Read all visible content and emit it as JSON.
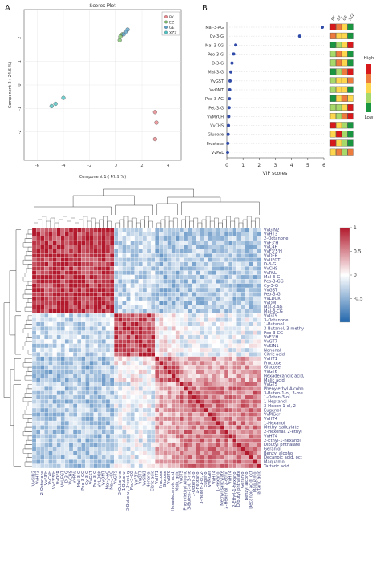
{
  "chart_data": [
    {
      "type": "scatter",
      "panel_label": "A",
      "title": "Scores Plot",
      "xlabel": "Component 1 ( 47.9 %)",
      "ylabel": "Component 2 ( 24.6 %)",
      "xlim": [
        -7,
        5
      ],
      "ylim": [
        -3.2,
        3.2
      ],
      "xticks": [
        -6,
        -4,
        -2,
        0,
        2,
        4
      ],
      "yticks": [
        -2,
        -1,
        0,
        1,
        2
      ],
      "legend": "top-right",
      "series": [
        {
          "name": "BY",
          "color": "#e8848a",
          "points": [
            [
              3.0,
              -1.15
            ],
            [
              3.1,
              -1.6
            ],
            [
              3.0,
              -2.3
            ]
          ]
        },
        {
          "name": "EZ",
          "color": "#7bbf6a",
          "points": [
            [
              0.5,
              2.15
            ],
            [
              0.3,
              1.9
            ],
            [
              0.35,
              2.05
            ]
          ]
        },
        {
          "name": "GE",
          "color": "#5aa0c8",
          "points": [
            [
              0.9,
              2.35
            ],
            [
              0.6,
              2.15
            ],
            [
              0.8,
              2.25
            ]
          ]
        },
        {
          "name": "XZZ",
          "color": "#4fc2c2",
          "points": [
            [
              -4.0,
              -0.55
            ],
            [
              -4.6,
              -0.8
            ],
            [
              -4.9,
              -0.9
            ]
          ]
        }
      ]
    },
    {
      "type": "scatter",
      "panel_label": "B",
      "xlabel": "VIP scores",
      "xlim": [
        0,
        6
      ],
      "xticks": [
        0,
        1,
        2,
        3,
        4,
        5,
        6
      ],
      "color": "#2f4aa8",
      "features": [
        "Mal-3-AG",
        "Cy-3-G",
        "Mal-3-CG",
        "Peo-3-G",
        "D-3-G",
        "Mal-3-G",
        "VvGST",
        "VvOMT",
        "Peo-3-AG",
        "Pet-3-G",
        "VvMYCH",
        "VvCHS",
        "Glucose",
        "Fructose",
        "VvPAL"
      ],
      "values": [
        5.9,
        4.5,
        0.55,
        0.42,
        0.32,
        0.25,
        0.2,
        0.18,
        0.16,
        0.14,
        0.12,
        0.1,
        0.08,
        0.06,
        0.05
      ],
      "group_labels": [
        "BY",
        "EZ",
        "GE",
        "XZZ"
      ],
      "scale_labels": [
        "High",
        "Low"
      ],
      "scale_colors": [
        "#d7191c",
        "#ec7b3d",
        "#fdd64d",
        "#a6d96a",
        "#1a9641"
      ],
      "group_levels": [
        [
          0.9,
          0.7,
          0.4,
          0.1
        ],
        [
          0.85,
          0.6,
          0.5,
          0.1
        ],
        [
          0.1,
          0.2,
          0.6,
          0.9
        ],
        [
          0.2,
          0.7,
          0.6,
          0.1
        ],
        [
          0.3,
          0.8,
          0.5,
          0.1
        ],
        [
          0.1,
          0.3,
          0.7,
          0.9
        ],
        [
          0.2,
          0.4,
          0.6,
          0.8
        ],
        [
          0.3,
          0.6,
          0.5,
          0.1
        ],
        [
          0.1,
          0.4,
          0.8,
          0.6
        ],
        [
          0.2,
          0.3,
          0.6,
          0.9
        ],
        [
          0.5,
          0.2,
          0.7,
          0.9
        ],
        [
          0.9,
          0.6,
          0.3,
          0.1
        ],
        [
          0.5,
          0.9,
          0.3,
          0.1
        ],
        [
          0.9,
          0.5,
          0.3,
          0.1
        ],
        [
          0.4,
          0.7,
          0.2,
          0.8
        ]
      ]
    },
    {
      "type": "heatmap",
      "colorbar_ticks": [
        "1",
        "0.5",
        "0",
        "-0.5"
      ],
      "colorbar_range": [
        -1,
        1
      ],
      "color_low": "#2166ac",
      "color_mid": "#ffffff",
      "color_high": "#b2182b",
      "row_labels": [
        "VvGIN2",
        "VvHT3",
        "2-Octanone",
        "VvF3'H",
        "VvC4H",
        "VvF3'5'H",
        "VvDFR",
        "VvUFGT",
        "D-3-G",
        "VvCHS",
        "VvPAL",
        "Mal-3-G",
        "Peo-3-GG",
        "Cy-3-G",
        "VvGST",
        "Peo-3-G",
        "VvLDOX",
        "VvOMT",
        "Mal-3-AG",
        "Mal-3-CG",
        "VvGT9",
        "3-Octanone",
        "1-Butanol",
        "3-Butanol, 3-methy",
        "Peo-3-CG",
        "VvF3'H",
        "VvGT7",
        "VvSIN1",
        "Nonanal",
        "Citric acid",
        "VvHT1",
        "Fructose",
        "Glucose",
        "VvGT6",
        "Hexadecanoic acid,",
        "Malic acid",
        "VvGT5",
        "Phenylethyl Alcoho",
        "3-Buten-1-ol, 3-me",
        "1-Octen-3-ol",
        "1-Heptanol",
        "3-Hexen-1-ol, 2-",
        "Eugenol",
        "VvMGer",
        "VvHT4",
        "1-Hexanol",
        "Methyl salicylate",
        "2-Hexenal, 2-ethyl",
        "VvHT4",
        "2-Ethyl-1-hexanol",
        "Dibutyl phthalate",
        "Geraniol",
        "Benzyl alcohol",
        "Decanoic acid, oct",
        "Maquamol",
        "Tartaric acid"
      ],
      "col_labels": [
        "VvGIN2",
        "VvHT3",
        "2-Octanone",
        "VvF3'H",
        "VvC4H",
        "VvF3'5'H",
        "VvDFR",
        "VvUFGT",
        "D-3-G",
        "VvCHS",
        "VvPAL",
        "Mal-3-G",
        "Peo-3-GG",
        "Cy-3-G",
        "VvGST",
        "Peo-3-G",
        "VvLDOX",
        "VvOMT",
        "Mal-3-AG",
        "Mal-3-CG",
        "VvGT9",
        "3-Octanone",
        "1-Butanol",
        "3-Butanol, 3-methy",
        "Peo-3-CG",
        "VvF3'H",
        "VvGT7",
        "VvSIN1",
        "Nonanal",
        "Citric acid",
        "VvHT1",
        "Fructose",
        "Glucose",
        "VvGT6",
        "Hexadecanoic acid,",
        "Malic acid",
        "VvGT5",
        "Phenylethyl Alcoho",
        "3-Buten-1-ol, 3-me",
        "1-Octen-3-ol",
        "1-Heptanol",
        "3-Hexen-1-ol, 2-",
        "Eugenol",
        "VvMGer",
        "VvHT4",
        "1-Hexanol",
        "Methyl salicylate",
        "2-Hexenal, 2-ethyl",
        "VvHT4",
        "2-Ethyl-1-hexanol",
        "Dibutyl phthalate",
        "Geraniol",
        "Benzyl alcohol",
        "Decanoic acid, oct",
        "Maquamol",
        "Tartaric acid"
      ],
      "cluster_groups": [
        [
          0,
          20
        ],
        [
          20,
          30
        ],
        [
          30,
          36
        ],
        [
          36,
          56
        ]
      ],
      "cluster_correlation": [
        [
          0.85,
          -0.25,
          -0.4,
          -0.35
        ],
        [
          -0.25,
          0.75,
          0.05,
          -0.1
        ],
        [
          -0.4,
          0.05,
          0.6,
          0.35
        ],
        [
          -0.35,
          -0.1,
          0.35,
          0.55
        ]
      ]
    }
  ]
}
